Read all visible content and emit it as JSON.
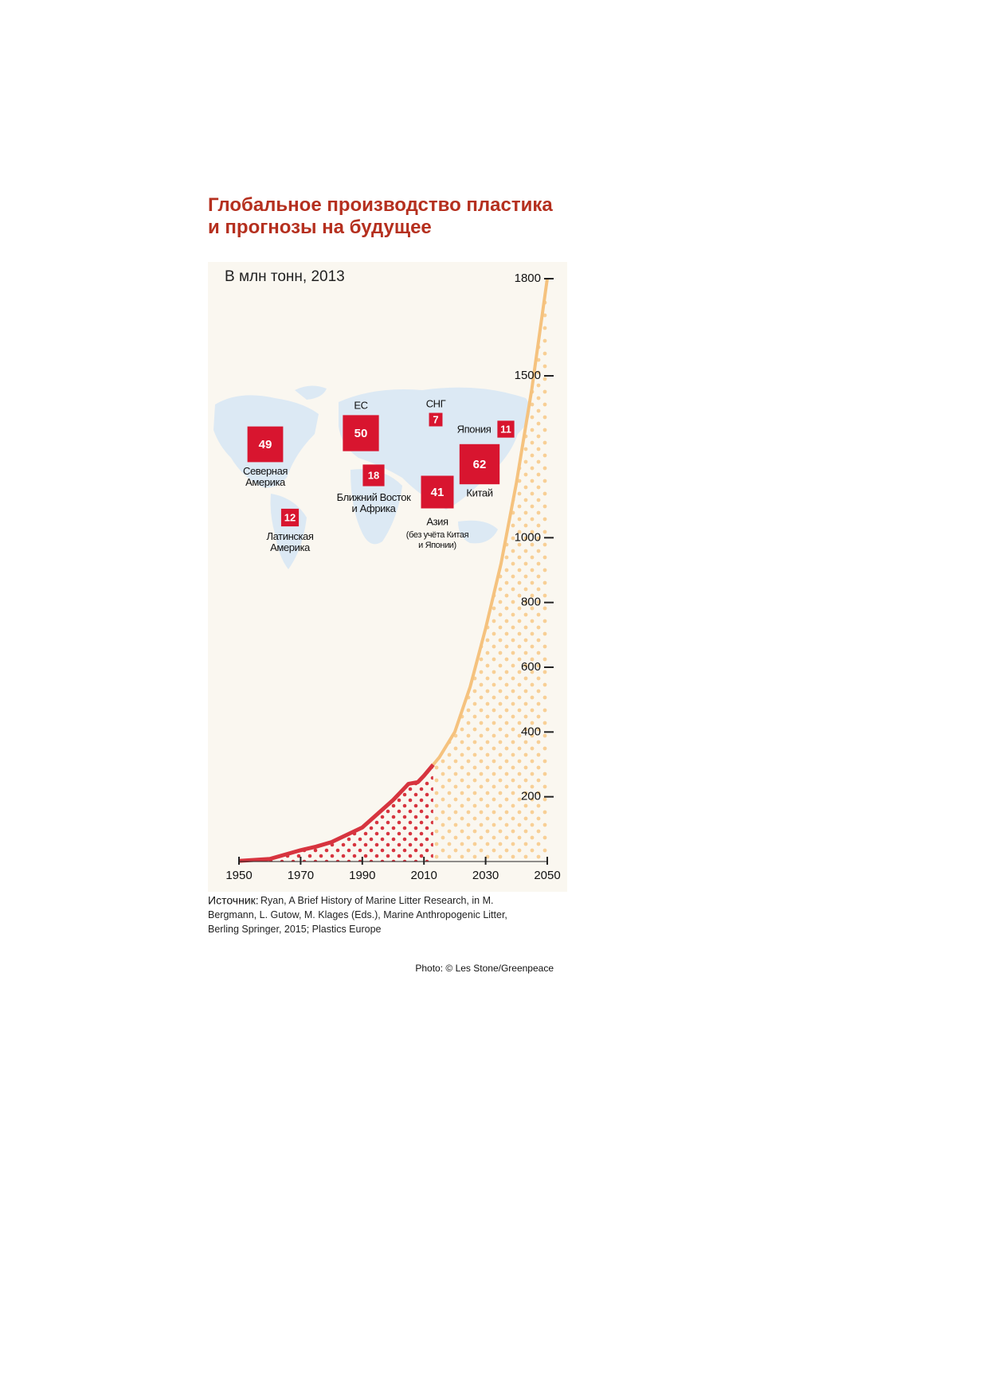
{
  "chart_data": [
    {
      "type": "line",
      "title": "Глобальное производство пластика\nи прогнозы на будущее",
      "subtitle": "В млн тонн, 2013",
      "x": [
        1950,
        1960,
        1970,
        1975,
        1980,
        1990,
        2000,
        2005,
        2008,
        2010,
        2013,
        2015,
        2020,
        2025,
        2030,
        2035,
        2040,
        2045,
        2050
      ],
      "series": [
        {
          "color": "#d7343f",
          "values": [
            2,
            8,
            35,
            46,
            60,
            105,
            190,
            240,
            245,
            265,
            299,
            null,
            null,
            null,
            null,
            null,
            null,
            null,
            null
          ]
        },
        {
          "color": "#f5c27e",
          "values": [
            null,
            null,
            null,
            null,
            null,
            null,
            null,
            null,
            null,
            null,
            299,
            322,
            400,
            540,
            720,
            920,
            1170,
            1460,
            1800
          ]
        }
      ],
      "xlim": [
        1950,
        2050
      ],
      "xticks": [
        1950,
        1970,
        1990,
        2010,
        2030,
        2050
      ],
      "ylim": [
        0,
        1800
      ],
      "yticks": [
        200,
        400,
        600,
        800,
        1000,
        1500,
        1800
      ]
    },
    {
      "type": "map-boxes",
      "categories": [
        "Северная\nАмерика",
        "ЕС",
        "СНГ",
        "Япония",
        "Китай",
        "Ближний Восток\nи Африка",
        "Азия",
        "Латинская\nАмерика"
      ],
      "sublabels": [
        null,
        null,
        null,
        null,
        null,
        null,
        "(без учёта Китая\nи Японии)",
        null
      ],
      "values": [
        49,
        50,
        7,
        11,
        62,
        18,
        41,
        12
      ],
      "color": "#d8152f"
    }
  ],
  "source": {
    "label": "Источник:",
    "text": "Ryan, A Brief History of Marine Litter Research, in M.\nBergmann, L. Gutow, M. Klages (Eds.), Marine Anthropogenic Litter,\nBerling Springer, 2015; Plastics Europe"
  },
  "credit": "Photo: © Les Stone/Greenpeace"
}
